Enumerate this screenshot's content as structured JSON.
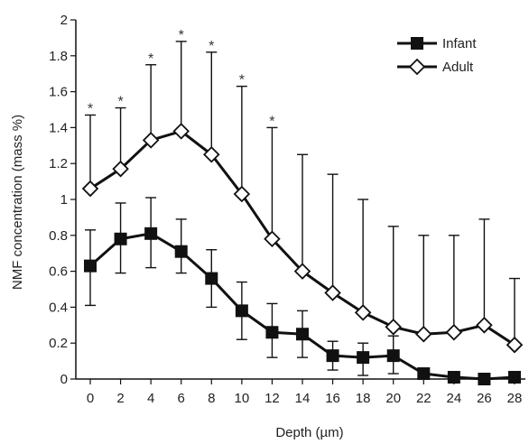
{
  "chart_data": {
    "type": "line",
    "title": "",
    "xlabel": "Depth (µm)",
    "ylabel": "NMF concentration (mass %)",
    "x": [
      0,
      2,
      4,
      6,
      8,
      10,
      12,
      14,
      16,
      18,
      20,
      22,
      24,
      26,
      28
    ],
    "x_ticks": [
      "0",
      "2",
      "4",
      "6",
      "8",
      "10",
      "12",
      "14",
      "16",
      "18",
      "20",
      "22",
      "24",
      "26",
      "28"
    ],
    "y_ticks": [
      "0",
      "0.2",
      "0.4",
      "0.6",
      "0.8",
      "1",
      "1.2",
      "1.4",
      "1.6",
      "1.8",
      "2"
    ],
    "ylim": [
      0,
      2
    ],
    "xlim": [
      0,
      28
    ],
    "grid": false,
    "legend_position": "top-right",
    "series": [
      {
        "name": "Infant",
        "marker": "filled-square",
        "color": "#111111",
        "values": [
          0.63,
          0.78,
          0.81,
          0.71,
          0.56,
          0.38,
          0.26,
          0.25,
          0.13,
          0.12,
          0.13,
          0.03,
          0.01,
          0.0,
          0.01
        ],
        "error_upper": [
          0.83,
          0.98,
          1.01,
          0.89,
          0.72,
          0.54,
          0.42,
          0.38,
          0.21,
          0.2,
          0.24,
          0.03,
          0.03,
          0.0,
          0.03
        ],
        "error_lower": [
          0.41,
          0.59,
          0.62,
          0.59,
          0.4,
          0.22,
          0.12,
          0.12,
          0.05,
          0.02,
          0.03,
          0.03,
          0.01,
          0.0,
          0.01
        ]
      },
      {
        "name": "Adult",
        "marker": "open-diamond",
        "color": "#111111",
        "values": [
          1.06,
          1.17,
          1.33,
          1.38,
          1.25,
          1.03,
          0.78,
          0.6,
          0.48,
          0.37,
          0.29,
          0.25,
          0.26,
          0.3,
          0.19
        ],
        "error_upper": [
          1.47,
          1.51,
          1.75,
          1.88,
          1.82,
          1.63,
          1.4,
          1.25,
          1.14,
          1.0,
          0.85,
          0.8,
          0.8,
          0.89,
          0.56
        ]
      }
    ],
    "annotations": [
      {
        "x": 0,
        "text": "*"
      },
      {
        "x": 2,
        "text": "*"
      },
      {
        "x": 4,
        "text": "*"
      },
      {
        "x": 6,
        "text": "*"
      },
      {
        "x": 8,
        "text": "*"
      },
      {
        "x": 10,
        "text": "*"
      },
      {
        "x": 12,
        "text": "*"
      }
    ]
  }
}
